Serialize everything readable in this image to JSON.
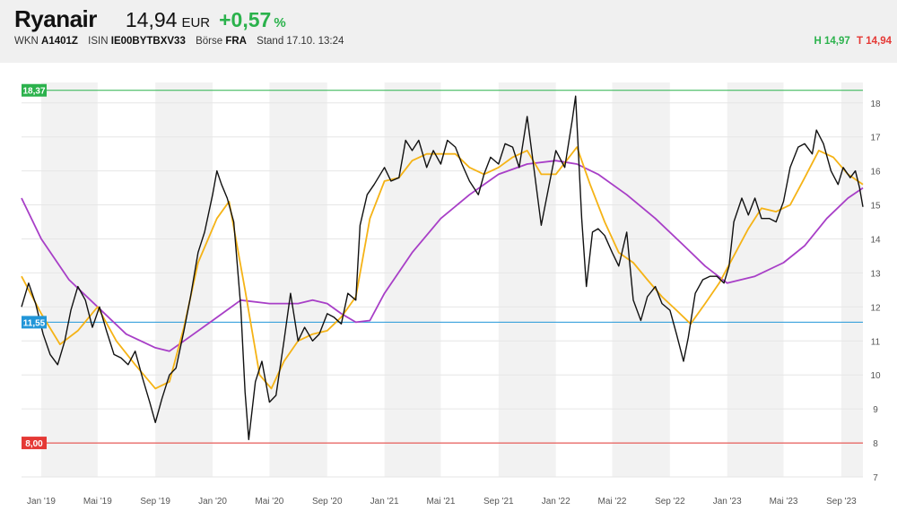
{
  "header": {
    "name": "Ryanair",
    "price": "14,94",
    "currency": "EUR",
    "change": "+0,57",
    "change_unit": "%",
    "wkn_label": "WKN",
    "wkn": "A1401Z",
    "isin_label": "ISIN",
    "isin": "IE00BYTBXV33",
    "exchange_label": "Börse",
    "exchange": "FRA",
    "stand_label": "Stand",
    "stand": "17.10. 13:24",
    "high": "H 14,97",
    "low": "T 14,94"
  },
  "colors": {
    "price_line": "#111111",
    "ma_short": "#f5b316",
    "ma_long": "#a83fc7",
    "max_level": "#2bb24c",
    "min_level": "#e53935",
    "level_mid": "#2196d8",
    "shade": "#f2f2f2",
    "positive": "#2bb24c",
    "negative": "#e53935"
  },
  "chart_data": {
    "type": "line",
    "x_range": [
      "2018-11-20",
      "2023-10-17"
    ],
    "ylim": [
      7,
      18.6
    ],
    "yticks": [
      7,
      8,
      9,
      10,
      11,
      12,
      13,
      14,
      15,
      16,
      17,
      18
    ],
    "xticks": [
      {
        "label": "Jan '19",
        "date": "2019-01-01"
      },
      {
        "label": "Mai '19",
        "date": "2019-05-01"
      },
      {
        "label": "Sep '19",
        "date": "2019-09-01"
      },
      {
        "label": "Jan '20",
        "date": "2020-01-01"
      },
      {
        "label": "Mai '20",
        "date": "2020-05-01"
      },
      {
        "label": "Sep '20",
        "date": "2020-09-01"
      },
      {
        "label": "Jan '21",
        "date": "2021-01-01"
      },
      {
        "label": "Mai '21",
        "date": "2021-05-01"
      },
      {
        "label": "Sep '21",
        "date": "2021-09-01"
      },
      {
        "label": "Jan '22",
        "date": "2022-01-01"
      },
      {
        "label": "Mai '22",
        "date": "2022-05-01"
      },
      {
        "label": "Sep '22",
        "date": "2022-09-01"
      },
      {
        "label": "Jan '23",
        "date": "2023-01-01"
      },
      {
        "label": "Mai '23",
        "date": "2023-05-01"
      },
      {
        "label": "Sep '23",
        "date": "2023-09-01"
      }
    ],
    "levels": [
      {
        "label": "18,37",
        "value": 18.37,
        "color": "#2bb24c"
      },
      {
        "label": "11,55",
        "value": 11.55,
        "color": "#2196d8"
      },
      {
        "label": "8,00",
        "value": 8.0,
        "color": "#e53935"
      }
    ],
    "series": [
      {
        "color": "#111111",
        "points": [
          [
            "2018-11-20",
            12.0
          ],
          [
            "2018-12-05",
            12.7
          ],
          [
            "2018-12-20",
            12.1
          ],
          [
            "2019-01-05",
            11.2
          ],
          [
            "2019-01-20",
            10.6
          ],
          [
            "2019-02-05",
            10.3
          ],
          [
            "2019-02-20",
            11.0
          ],
          [
            "2019-03-05",
            11.9
          ],
          [
            "2019-03-20",
            12.6
          ],
          [
            "2019-04-05",
            12.2
          ],
          [
            "2019-04-20",
            11.4
          ],
          [
            "2019-05-05",
            12.0
          ],
          [
            "2019-05-20",
            11.3
          ],
          [
            "2019-06-05",
            10.6
          ],
          [
            "2019-06-20",
            10.5
          ],
          [
            "2019-07-05",
            10.3
          ],
          [
            "2019-07-20",
            10.7
          ],
          [
            "2019-08-05",
            9.9
          ],
          [
            "2019-08-20",
            9.2
          ],
          [
            "2019-09-01",
            8.6
          ],
          [
            "2019-09-15",
            9.3
          ],
          [
            "2019-10-01",
            10.0
          ],
          [
            "2019-10-15",
            10.2
          ],
          [
            "2019-11-01",
            11.3
          ],
          [
            "2019-11-15",
            12.3
          ],
          [
            "2019-12-01",
            13.6
          ],
          [
            "2019-12-15",
            14.2
          ],
          [
            "2020-01-01",
            15.3
          ],
          [
            "2020-01-10",
            16.0
          ],
          [
            "2020-01-20",
            15.6
          ],
          [
            "2020-02-01",
            15.2
          ],
          [
            "2020-02-15",
            14.5
          ],
          [
            "2020-03-01",
            12.0
          ],
          [
            "2020-03-10",
            9.5
          ],
          [
            "2020-03-18",
            8.1
          ],
          [
            "2020-04-01",
            9.8
          ],
          [
            "2020-04-15",
            10.4
          ],
          [
            "2020-05-01",
            9.2
          ],
          [
            "2020-05-15",
            9.4
          ],
          [
            "2020-06-01",
            11.0
          ],
          [
            "2020-06-15",
            12.4
          ],
          [
            "2020-07-01",
            11.0
          ],
          [
            "2020-07-15",
            11.4
          ],
          [
            "2020-08-01",
            11.0
          ],
          [
            "2020-08-15",
            11.2
          ],
          [
            "2020-09-01",
            11.8
          ],
          [
            "2020-09-15",
            11.7
          ],
          [
            "2020-10-01",
            11.5
          ],
          [
            "2020-10-15",
            12.4
          ],
          [
            "2020-11-01",
            12.2
          ],
          [
            "2020-11-10",
            14.4
          ],
          [
            "2020-11-25",
            15.3
          ],
          [
            "2020-12-10",
            15.6
          ],
          [
            "2021-01-01",
            16.1
          ],
          [
            "2021-01-15",
            15.7
          ],
          [
            "2021-02-01",
            15.8
          ],
          [
            "2021-02-15",
            16.9
          ],
          [
            "2021-03-01",
            16.6
          ],
          [
            "2021-03-15",
            16.9
          ],
          [
            "2021-04-01",
            16.1
          ],
          [
            "2021-04-15",
            16.6
          ],
          [
            "2021-05-01",
            16.2
          ],
          [
            "2021-05-15",
            16.9
          ],
          [
            "2021-06-01",
            16.7
          ],
          [
            "2021-06-15",
            16.2
          ],
          [
            "2021-07-01",
            15.7
          ],
          [
            "2021-07-20",
            15.3
          ],
          [
            "2021-08-01",
            15.9
          ],
          [
            "2021-08-15",
            16.4
          ],
          [
            "2021-09-01",
            16.2
          ],
          [
            "2021-09-15",
            16.8
          ],
          [
            "2021-10-01",
            16.7
          ],
          [
            "2021-10-15",
            16.1
          ],
          [
            "2021-11-01",
            17.6
          ],
          [
            "2021-11-15",
            16.1
          ],
          [
            "2021-12-01",
            14.4
          ],
          [
            "2021-12-15",
            15.4
          ],
          [
            "2022-01-01",
            16.6
          ],
          [
            "2022-01-20",
            16.1
          ],
          [
            "2022-02-05",
            17.5
          ],
          [
            "2022-02-12",
            18.2
          ],
          [
            "2022-02-25",
            14.6
          ],
          [
            "2022-03-07",
            12.6
          ],
          [
            "2022-03-20",
            14.2
          ],
          [
            "2022-04-01",
            14.3
          ],
          [
            "2022-04-15",
            14.1
          ],
          [
            "2022-05-01",
            13.6
          ],
          [
            "2022-05-15",
            13.2
          ],
          [
            "2022-06-01",
            14.2
          ],
          [
            "2022-06-15",
            12.2
          ],
          [
            "2022-07-01",
            11.6
          ],
          [
            "2022-07-15",
            12.3
          ],
          [
            "2022-08-01",
            12.6
          ],
          [
            "2022-08-15",
            12.1
          ],
          [
            "2022-09-01",
            11.9
          ],
          [
            "2022-09-15",
            11.2
          ],
          [
            "2022-09-30",
            10.4
          ],
          [
            "2022-10-10",
            11.1
          ],
          [
            "2022-10-25",
            12.4
          ],
          [
            "2022-11-10",
            12.8
          ],
          [
            "2022-11-25",
            12.9
          ],
          [
            "2022-12-10",
            12.9
          ],
          [
            "2022-12-25",
            12.7
          ],
          [
            "2023-01-05",
            13.2
          ],
          [
            "2023-01-15",
            14.5
          ],
          [
            "2023-02-01",
            15.2
          ],
          [
            "2023-02-15",
            14.7
          ],
          [
            "2023-03-01",
            15.2
          ],
          [
            "2023-03-15",
            14.6
          ],
          [
            "2023-04-01",
            14.6
          ],
          [
            "2023-04-15",
            14.5
          ],
          [
            "2023-05-01",
            15.1
          ],
          [
            "2023-05-15",
            16.1
          ],
          [
            "2023-06-01",
            16.7
          ],
          [
            "2023-06-15",
            16.8
          ],
          [
            "2023-07-01",
            16.5
          ],
          [
            "2023-07-10",
            17.2
          ],
          [
            "2023-07-25",
            16.8
          ],
          [
            "2023-08-10",
            16.0
          ],
          [
            "2023-08-25",
            15.6
          ],
          [
            "2023-09-05",
            16.1
          ],
          [
            "2023-09-20",
            15.8
          ],
          [
            "2023-10-01",
            16.0
          ],
          [
            "2023-10-10",
            15.5
          ],
          [
            "2023-10-17",
            14.94
          ]
        ]
      },
      {
        "color": "#f5b316",
        "points": [
          [
            "2018-11-20",
            12.9
          ],
          [
            "2019-01-01",
            11.8
          ],
          [
            "2019-02-10",
            10.9
          ],
          [
            "2019-03-20",
            11.3
          ],
          [
            "2019-05-01",
            12.0
          ],
          [
            "2019-06-10",
            11.0
          ],
          [
            "2019-07-20",
            10.3
          ],
          [
            "2019-09-01",
            9.6
          ],
          [
            "2019-10-01",
            9.8
          ],
          [
            "2019-11-01",
            11.4
          ],
          [
            "2019-12-01",
            13.3
          ],
          [
            "2020-01-10",
            14.6
          ],
          [
            "2020-02-05",
            15.1
          ],
          [
            "2020-03-10",
            12.5
          ],
          [
            "2020-04-10",
            10.0
          ],
          [
            "2020-05-05",
            9.6
          ],
          [
            "2020-06-01",
            10.4
          ],
          [
            "2020-07-01",
            11.0
          ],
          [
            "2020-08-01",
            11.2
          ],
          [
            "2020-09-01",
            11.3
          ],
          [
            "2020-10-01",
            11.7
          ],
          [
            "2020-11-01",
            12.3
          ],
          [
            "2020-12-01",
            14.6
          ],
          [
            "2021-01-01",
            15.7
          ],
          [
            "2021-02-01",
            15.8
          ],
          [
            "2021-03-01",
            16.3
          ],
          [
            "2021-04-01",
            16.5
          ],
          [
            "2021-05-01",
            16.5
          ],
          [
            "2021-06-01",
            16.5
          ],
          [
            "2021-07-01",
            16.1
          ],
          [
            "2021-08-01",
            15.9
          ],
          [
            "2021-09-01",
            16.1
          ],
          [
            "2021-10-01",
            16.4
          ],
          [
            "2021-11-01",
            16.6
          ],
          [
            "2021-12-01",
            15.9
          ],
          [
            "2022-01-01",
            15.9
          ],
          [
            "2022-02-15",
            16.7
          ],
          [
            "2022-03-15",
            15.6
          ],
          [
            "2022-04-15",
            14.5
          ],
          [
            "2022-05-15",
            13.6
          ],
          [
            "2022-06-15",
            13.3
          ],
          [
            "2022-07-15",
            12.8
          ],
          [
            "2022-08-15",
            12.3
          ],
          [
            "2022-09-15",
            11.9
          ],
          [
            "2022-10-15",
            11.5
          ],
          [
            "2022-11-15",
            12.1
          ],
          [
            "2022-12-15",
            12.7
          ],
          [
            "2023-01-15",
            13.5
          ],
          [
            "2023-02-15",
            14.3
          ],
          [
            "2023-03-15",
            14.9
          ],
          [
            "2023-04-15",
            14.8
          ],
          [
            "2023-05-15",
            15.0
          ],
          [
            "2023-06-15",
            15.8
          ],
          [
            "2023-07-15",
            16.6
          ],
          [
            "2023-08-15",
            16.4
          ],
          [
            "2023-09-15",
            15.9
          ],
          [
            "2023-10-17",
            15.6
          ]
        ]
      },
      {
        "color": "#a83fc7",
        "points": [
          [
            "2018-11-20",
            15.2
          ],
          [
            "2019-01-01",
            14.0
          ],
          [
            "2019-03-01",
            12.8
          ],
          [
            "2019-05-01",
            12.0
          ],
          [
            "2019-07-01",
            11.2
          ],
          [
            "2019-09-01",
            10.8
          ],
          [
            "2019-10-01",
            10.7
          ],
          [
            "2019-11-01",
            11.0
          ],
          [
            "2020-01-01",
            11.6
          ],
          [
            "2020-03-01",
            12.2
          ],
          [
            "2020-05-01",
            12.1
          ],
          [
            "2020-07-01",
            12.1
          ],
          [
            "2020-08-01",
            12.2
          ],
          [
            "2020-09-01",
            12.1
          ],
          [
            "2020-10-01",
            11.8
          ],
          [
            "2020-11-01",
            11.55
          ],
          [
            "2020-12-01",
            11.6
          ],
          [
            "2021-01-01",
            12.4
          ],
          [
            "2021-03-01",
            13.6
          ],
          [
            "2021-05-01",
            14.6
          ],
          [
            "2021-07-01",
            15.3
          ],
          [
            "2021-09-01",
            15.9
          ],
          [
            "2021-11-01",
            16.2
          ],
          [
            "2022-01-01",
            16.3
          ],
          [
            "2022-02-15",
            16.2
          ],
          [
            "2022-04-01",
            15.9
          ],
          [
            "2022-06-01",
            15.3
          ],
          [
            "2022-08-01",
            14.6
          ],
          [
            "2022-10-01",
            13.8
          ],
          [
            "2022-11-15",
            13.2
          ],
          [
            "2023-01-01",
            12.7
          ],
          [
            "2023-03-01",
            12.9
          ],
          [
            "2023-05-01",
            13.3
          ],
          [
            "2023-06-15",
            13.8
          ],
          [
            "2023-08-01",
            14.6
          ],
          [
            "2023-09-15",
            15.2
          ],
          [
            "2023-10-17",
            15.5
          ]
        ]
      }
    ]
  }
}
